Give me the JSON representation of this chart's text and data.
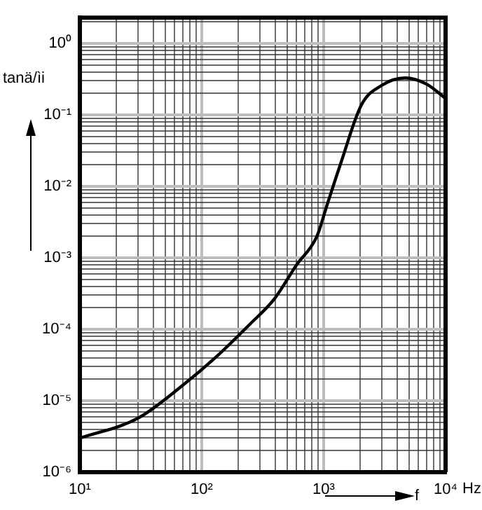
{
  "chart_data": {
    "type": "line",
    "xlabel": "f",
    "ylabel": "tanä/ìi",
    "log": "xy",
    "grid": true,
    "marker": "none",
    "line_style": "solid",
    "x": [
      10,
      30,
      70,
      129,
      251,
      390,
      600,
      880,
      1070,
      1380,
      2040,
      3000,
      4650,
      7000,
      10000
    ],
    "series": [
      {
        "color": "#000000",
        "values": [
          3e-06,
          5.7e-06,
          1.65e-05,
          4e-05,
          0.00012,
          0.00026,
          0.0008,
          0.002,
          0.0056,
          0.021,
          0.138,
          0.26,
          0.33,
          0.27,
          0.17
        ]
      }
    ],
    "xlim": [
      10,
      10000
    ],
    "ylim": [
      1e-06,
      2.3
    ],
    "xticks": [
      {
        "value": 10,
        "label": "10¹"
      },
      {
        "value": 20,
        "label": null
      },
      {
        "value": 30,
        "label": null
      },
      {
        "value": 40,
        "label": null
      },
      {
        "value": 50,
        "label": null
      },
      {
        "value": 60,
        "label": null
      },
      {
        "value": 70,
        "label": null
      },
      {
        "value": 80,
        "label": null
      },
      {
        "value": 90,
        "label": null
      },
      {
        "value": 100,
        "label": "10²"
      },
      {
        "value": 200,
        "label": null
      },
      {
        "value": 300,
        "label": null
      },
      {
        "value": 400,
        "label": null
      },
      {
        "value": 500,
        "label": null
      },
      {
        "value": 600,
        "label": null
      },
      {
        "value": 700,
        "label": null
      },
      {
        "value": 800,
        "label": null
      },
      {
        "value": 900,
        "label": null
      },
      {
        "value": 1000,
        "label": "10³"
      },
      {
        "value": 2000,
        "label": null
      },
      {
        "value": 3000,
        "label": null
      },
      {
        "value": 4000,
        "label": null
      },
      {
        "value": 5000,
        "label": null
      },
      {
        "value": 6000,
        "label": null
      },
      {
        "value": 7000,
        "label": null
      },
      {
        "value": 8000,
        "label": null
      },
      {
        "value": 9000,
        "label": null
      },
      {
        "value": 10000,
        "label": "10⁴"
      }
    ],
    "annotations": [
      "Hz"
    ],
    "yticks": [
      {
        "value": 1e-06,
        "label": "10⁻⁶"
      },
      {
        "value": 2e-06,
        "label": null
      },
      {
        "value": 3e-06,
        "label": null
      },
      {
        "value": 4e-06,
        "label": null
      },
      {
        "value": 5e-06,
        "label": null
      },
      {
        "value": 6e-06,
        "label": null
      },
      {
        "value": 7e-06,
        "label": null
      },
      {
        "value": 8e-06,
        "label": null
      },
      {
        "value": 9e-06,
        "label": null
      },
      {
        "value": 1e-05,
        "label": "10⁻⁵"
      },
      {
        "value": 2e-05,
        "label": null
      },
      {
        "value": 3e-05,
        "label": null
      },
      {
        "value": 4e-05,
        "label": null
      },
      {
        "value": 5e-05,
        "label": null
      },
      {
        "value": 6e-05,
        "label": null
      },
      {
        "value": 7e-05,
        "label": null
      },
      {
        "value": 8e-05,
        "label": null
      },
      {
        "value": 9e-05,
        "label": null
      },
      {
        "value": 0.0001,
        "label": "10⁻⁴"
      },
      {
        "value": 0.0002,
        "label": null
      },
      {
        "value": 0.0003,
        "label": null
      },
      {
        "value": 0.0004,
        "label": null
      },
      {
        "value": 0.0005,
        "label": null
      },
      {
        "value": 0.0006,
        "label": null
      },
      {
        "value": 0.0007,
        "label": null
      },
      {
        "value": 0.0008,
        "label": null
      },
      {
        "value": 0.0009,
        "label": null
      },
      {
        "value": 0.001,
        "label": "10⁻³"
      },
      {
        "value": 0.002,
        "label": null
      },
      {
        "value": 0.003,
        "label": null
      },
      {
        "value": 0.004,
        "label": null
      },
      {
        "value": 0.005,
        "label": null
      },
      {
        "value": 0.006,
        "label": null
      },
      {
        "value": 0.007,
        "label": null
      },
      {
        "value": 0.008,
        "label": null
      },
      {
        "value": 0.009,
        "label": null
      },
      {
        "value": 0.01,
        "label": "10⁻²"
      },
      {
        "value": 0.02,
        "label": null
      },
      {
        "value": 0.03,
        "label": null
      },
      {
        "value": 0.04,
        "label": null
      },
      {
        "value": 0.05,
        "label": null
      },
      {
        "value": 0.06,
        "label": null
      },
      {
        "value": 0.07,
        "label": null
      },
      {
        "value": 0.08,
        "label": null
      },
      {
        "value": 0.09,
        "label": null
      },
      {
        "value": 0.1,
        "label": "10⁻¹"
      },
      {
        "value": 0.2,
        "label": null
      },
      {
        "value": 0.3,
        "label": null
      },
      {
        "value": 0.4,
        "label": null
      },
      {
        "value": 0.5,
        "label": null
      },
      {
        "value": 0.6,
        "label": null
      },
      {
        "value": 0.7,
        "label": null
      },
      {
        "value": 0.8,
        "label": null
      },
      {
        "value": 0.9,
        "label": null
      },
      {
        "value": 1,
        "label": "10⁰"
      },
      {
        "value": 2,
        "label": null
      }
    ]
  }
}
